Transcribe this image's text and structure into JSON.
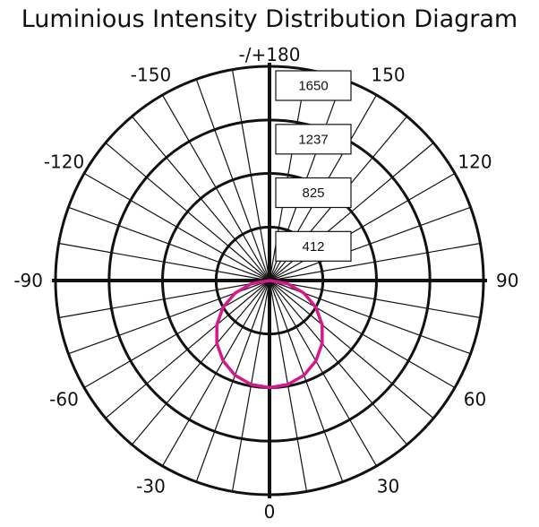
{
  "chart_data": {
    "type": "polar",
    "title": "Luminious Intensity Distribution Diagram",
    "rings": [
      "412",
      "825",
      "1237",
      "1650"
    ],
    "ring_values": [
      412,
      825,
      1237,
      1650
    ],
    "angle_labels": [
      "0",
      "30",
      "60",
      "90",
      "120",
      "150",
      "-/+180",
      "-150",
      "-120",
      "-90",
      "-60",
      "-30"
    ],
    "angle_values": [
      0,
      30,
      60,
      90,
      120,
      150,
      180,
      -150,
      -120,
      -90,
      -60,
      -30
    ],
    "radial_step_deg": 10,
    "r_max": 1650,
    "series": [
      {
        "color": "#d6198a",
        "angles_deg": [
          -90,
          -80,
          -70,
          -60,
          -50,
          -40,
          -30,
          -20,
          -10,
          0,
          10,
          20,
          30,
          40,
          50,
          60,
          70,
          80,
          90
        ],
        "values": [
          0,
          143,
          282,
          413,
          530,
          632,
          715,
          777,
          813,
          825,
          813,
          777,
          715,
          632,
          530,
          413,
          282,
          143,
          0
        ]
      }
    ]
  }
}
